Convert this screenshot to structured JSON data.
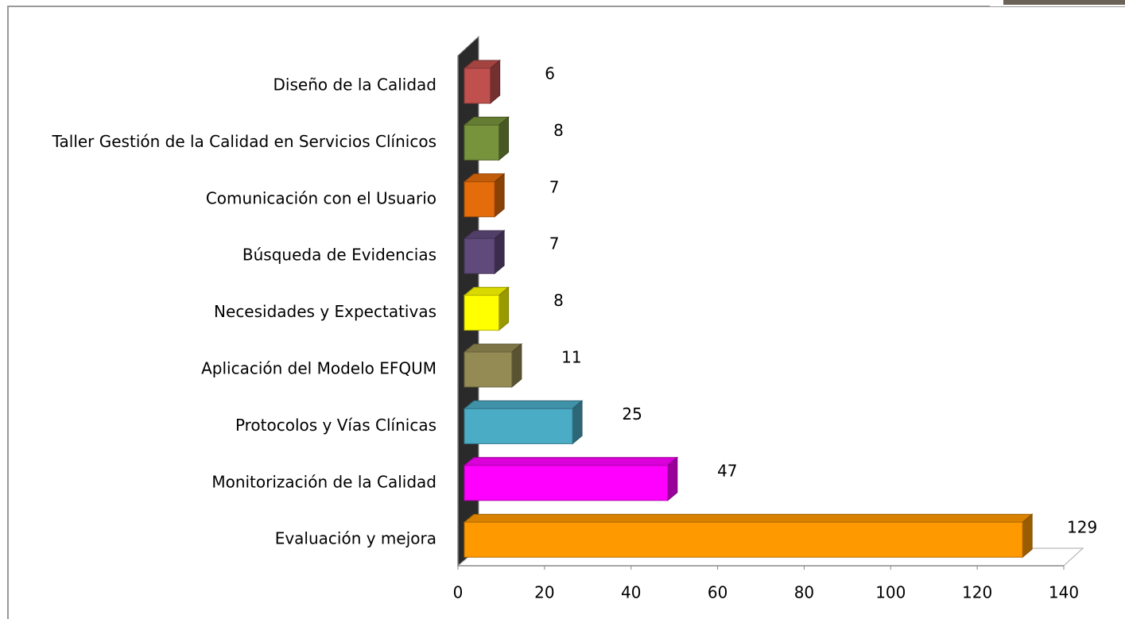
{
  "chart_data": {
    "type": "bar3d_horizontal",
    "categories": [
      "Diseño de la Calidad",
      "Taller Gestión de la Calidad en Servicios Clínicos",
      "Comunicación con el Usuario",
      "Búsqueda de Evidencias",
      "Necesidades y Expectativas",
      "Aplicación del Modelo EFQUM",
      "Protocolos y Vías Clínicas",
      "Monitorización de la Calidad",
      "Evaluación y mejora"
    ],
    "values": [
      6,
      8,
      7,
      7,
      8,
      11,
      25,
      47,
      129
    ],
    "colors": [
      "#c0504d",
      "#77933c",
      "#e46c0a",
      "#604a7b",
      "#ffff00",
      "#948a54",
      "#4bacc6",
      "#ff00ff",
      "#ff9900"
    ],
    "xlim": [
      0,
      140
    ],
    "xticks": [
      0,
      20,
      40,
      60,
      80,
      100,
      120,
      140
    ]
  }
}
